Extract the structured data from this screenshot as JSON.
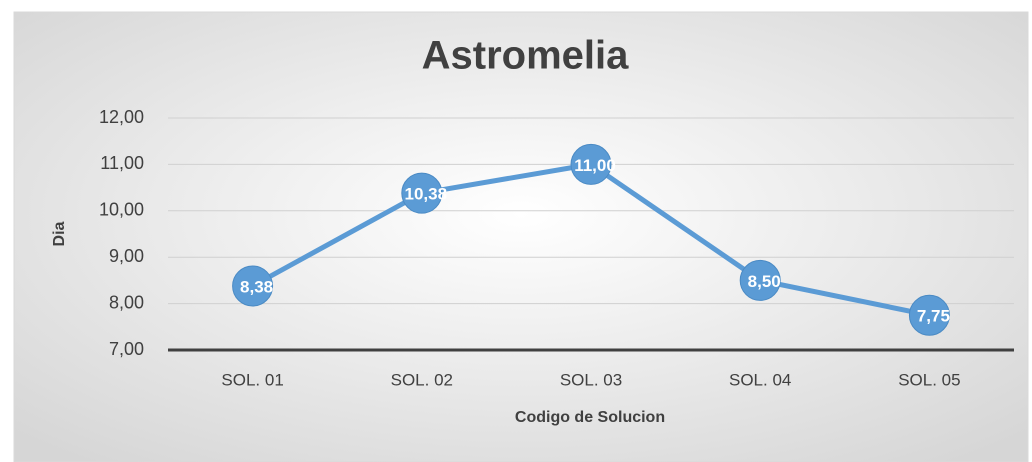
{
  "chart_data": {
    "type": "line",
    "title": "Astromelia",
    "x_label": "Codigo de Solucion",
    "y_label": "Dia",
    "categories": [
      "SOL. 01",
      "SOL. 02",
      "SOL. 03",
      "SOL. 04",
      "SOL. 05"
    ],
    "series": [
      {
        "name": "Dia",
        "color": "#5b9bd5",
        "values": [
          8.38,
          10.38,
          11.0,
          8.5,
          7.75
        ],
        "value_labels": [
          "8,38",
          "10,38",
          "11,00",
          "8,50",
          "7,75"
        ]
      }
    ],
    "ylim": [
      7,
      12
    ],
    "yticks": [
      {
        "value": 7,
        "label": "7,00"
      },
      {
        "value": 8,
        "label": "8,00"
      },
      {
        "value": 9,
        "label": "9,00"
      },
      {
        "value": 10,
        "label": "10,00"
      },
      {
        "value": 11,
        "label": "11,00"
      },
      {
        "value": 12,
        "label": "12,00"
      }
    ],
    "grid": true
  }
}
